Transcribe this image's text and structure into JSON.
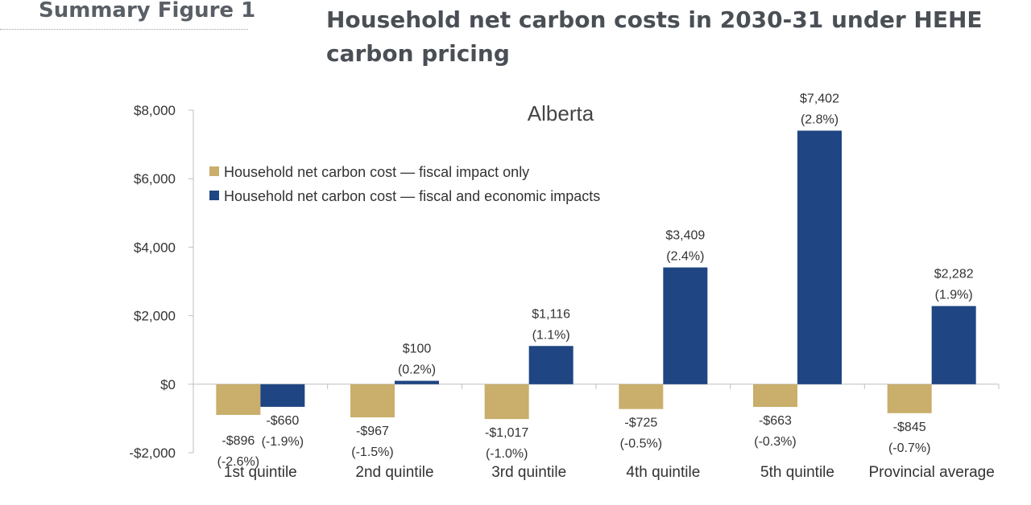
{
  "figure_label": "Summary Figure 1",
  "figure_title": "Household net carbon costs in 2030-31 under HEHE carbon pricing",
  "colors": {
    "fiscal": "#C9AE6C",
    "economic": "#1F4582",
    "axis": "#bfbfbf"
  },
  "chart_data": {
    "type": "bar",
    "title": "Alberta",
    "categories": [
      "1st quintile",
      "2nd quintile",
      "3rd quintile",
      "4th quintile",
      "5th quintile",
      "Provincial average"
    ],
    "series": [
      {
        "name": "Household net carbon cost — fiscal impact only",
        "values": [
          -896,
          -967,
          -1017,
          -725,
          -663,
          -845
        ],
        "labels": [
          [
            "-$896",
            "(-2.6%)"
          ],
          [
            "-$967",
            "(-1.5%)"
          ],
          [
            "-$1,017",
            "(-1.0%)"
          ],
          [
            "-$725",
            "(-0.5%)"
          ],
          [
            "-$663",
            "(-0.3%)"
          ],
          [
            "-$845",
            "(-0.7%)"
          ]
        ]
      },
      {
        "name": "Household net carbon cost — fiscal and economic impacts",
        "values": [
          -660,
          100,
          1116,
          3409,
          7402,
          2282
        ],
        "labels": [
          [
            "-$660",
            "(-1.9%)"
          ],
          [
            "$100",
            "(0.2%)"
          ],
          [
            "$1,116",
            "(1.1%)"
          ],
          [
            "$3,409",
            "(2.4%)"
          ],
          [
            "$7,402",
            "(2.8%)"
          ],
          [
            "$2,282",
            "(1.9%)"
          ]
        ]
      }
    ],
    "ylim": [
      -2000,
      8000
    ],
    "yticks": [
      -2000,
      0,
      2000,
      4000,
      6000,
      8000
    ],
    "ytick_labels": [
      "-$2,000",
      "$0",
      "$2,000",
      "$4,000",
      "$6,000",
      "$8,000"
    ],
    "legend_position": "top-left",
    "xlabel": "",
    "ylabel": ""
  }
}
